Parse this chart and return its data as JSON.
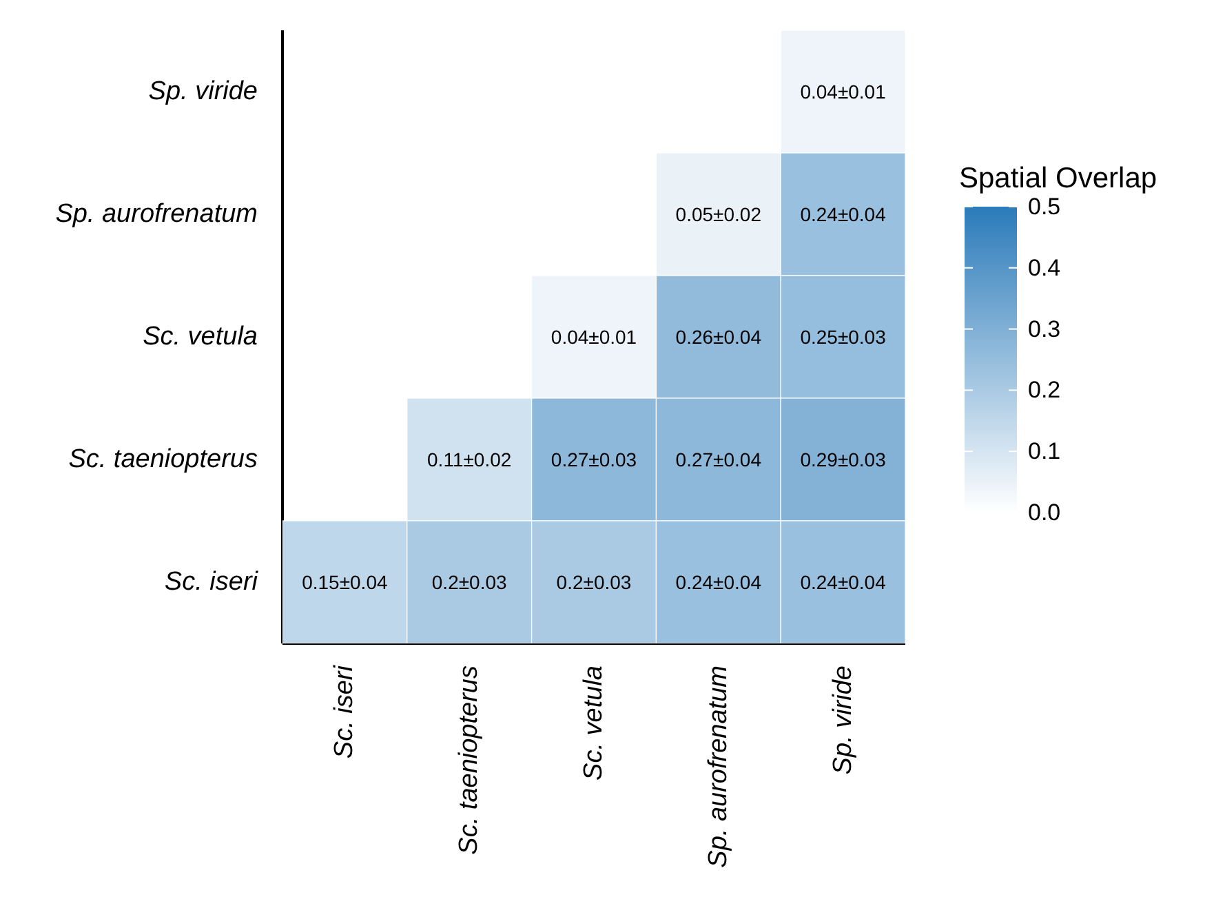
{
  "chart_data": {
    "type": "heatmap",
    "clabel": "Spatial Overlap",
    "categories": [
      "Sc. iseri",
      "Sc. taeniopterus",
      "Sc. vetula",
      "Sp. aurofrenatum",
      "Sp. viride"
    ],
    "y_categories": [
      "Sp. viride",
      "Sp. aurofrenatum",
      "Sc. vetula",
      "Sc. taeniopterus",
      "Sc. iseri"
    ],
    "cells": [
      [
        null,
        null,
        null,
        null,
        0.04
      ],
      [
        null,
        null,
        null,
        0.05,
        0.24
      ],
      [
        null,
        null,
        0.04,
        0.26,
        0.25
      ],
      [
        null,
        0.11,
        0.27,
        0.27,
        0.29
      ],
      [
        0.15,
        0.2,
        0.2,
        0.24,
        0.24
      ]
    ],
    "cell_labels": [
      [
        null,
        null,
        null,
        null,
        "0.04±0.01"
      ],
      [
        null,
        null,
        null,
        "0.05±0.02",
        "0.24±0.04"
      ],
      [
        null,
        null,
        "0.04±0.01",
        "0.26±0.04",
        "0.25±0.03"
      ],
      [
        null,
        "0.11±0.02",
        "0.27±0.03",
        "0.27±0.04",
        "0.29±0.03"
      ],
      [
        "0.15±0.04",
        "0.2±0.03",
        "0.2±0.03",
        "0.24±0.04",
        "0.24±0.04"
      ]
    ],
    "colors": [
      "#ffffff",
      "#2b7bba"
    ],
    "clim": [
      0,
      0.5
    ],
    "cticks": [
      {
        "value": 0,
        "label": "0.0"
      },
      {
        "value": 0.1,
        "label": "0.1"
      },
      {
        "value": 0.2,
        "label": "0.2"
      },
      {
        "value": 0.3,
        "label": "0.3"
      },
      {
        "value": 0.4,
        "label": "0.4"
      },
      {
        "value": 0.5,
        "label": "0.5"
      }
    ]
  }
}
